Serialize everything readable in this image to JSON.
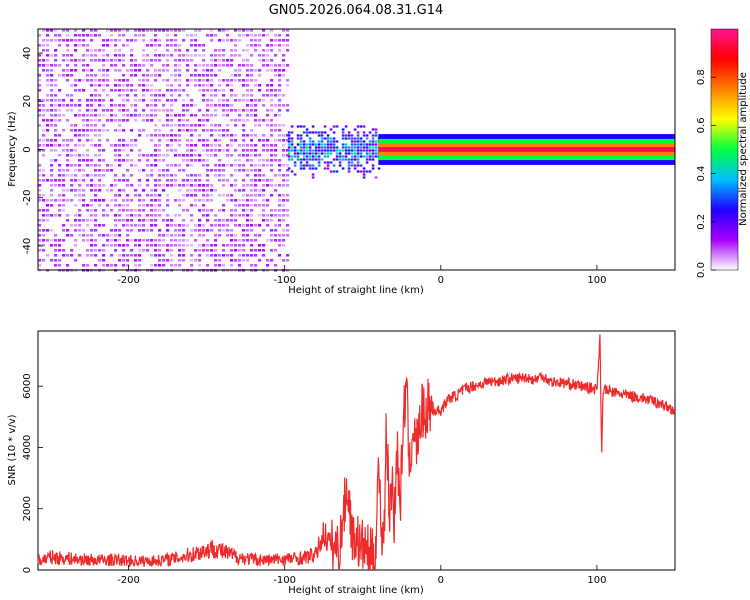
{
  "title": "GN05.2026.064.08.31.G14",
  "chart_data": [
    {
      "type": "heatmap",
      "xlabel": "Height of straight line (km)",
      "ylabel": "Frequency (Hz)",
      "xlim": [
        -258,
        150
      ],
      "ylim": [
        -50,
        50
      ],
      "xticks": [
        -200,
        -100,
        0,
        100
      ],
      "xticklabels": [
        "-200",
        "-100",
        "0",
        "100"
      ],
      "yticks": [
        -40,
        -20,
        0,
        20,
        40
      ],
      "yticklabels": [
        "-40",
        "-20",
        "0",
        "20",
        "40"
      ],
      "colorbar": {
        "label": "Normalized spectral amplitude",
        "range": [
          0,
          1
        ],
        "ticks": [
          0,
          0.2,
          0.4,
          0.6,
          0.8
        ],
        "ticklabels": [
          "0.0",
          "0.2",
          "0.4",
          "0.6",
          "0.8"
        ],
        "colormap": [
          "#ffffff",
          "#a500ff",
          "#1e00ff",
          "#00bfff",
          "#00ff40",
          "#ffff00",
          "#ff8000",
          "#ff0000",
          "#ff1493"
        ]
      },
      "regions": [
        {
          "x": [
            -258,
            -98
          ],
          "freq": [
            -50,
            50
          ],
          "amplitude": 0.1,
          "pattern": "noise"
        },
        {
          "x": [
            -98,
            -40
          ],
          "freq": [
            -12,
            10
          ],
          "amplitude": 0.35,
          "pattern": "scatter"
        },
        {
          "x": [
            -40,
            150
          ],
          "freq": [
            -2,
            2
          ],
          "amplitude": 0.95,
          "pattern": "line"
        }
      ]
    },
    {
      "type": "line",
      "xlabel": "Height of straight line (km)",
      "ylabel": "SNR (10 * v/v)",
      "xlim": [
        -258,
        150
      ],
      "ylim": [
        0,
        7800
      ],
      "xticks": [
        -200,
        -100,
        0,
        100
      ],
      "xticklabels": [
        "-200",
        "-100",
        "0",
        "100"
      ],
      "yticks": [
        0,
        2000,
        4000,
        6000
      ],
      "yticklabels": [
        "0",
        "2000",
        "4000",
        "6000"
      ],
      "color": "#ee2a2a",
      "series": [
        {
          "x": [
            -258,
            -250,
            -240,
            -230,
            -220,
            -210,
            -200,
            -190,
            -180,
            -170,
            -160,
            -150,
            -145,
            -140,
            -130,
            -120,
            -110,
            -100,
            -90,
            -80,
            -75,
            -70,
            -65,
            -60,
            -58,
            -56,
            -54,
            -52,
            -50,
            -45,
            -42,
            -40,
            -38,
            -36,
            -35,
            -33,
            -31,
            -30,
            -28,
            -26,
            -24,
            -22,
            -20,
            -18,
            -16,
            -14,
            -12,
            -10,
            -8,
            -5,
            0,
            5,
            10,
            15,
            20,
            25,
            30,
            35,
            40,
            45,
            50,
            55,
            60,
            65,
            70,
            80,
            90,
            100,
            102,
            103,
            104,
            110,
            120,
            130,
            140,
            150
          ],
          "y": [
            300,
            420,
            380,
            340,
            320,
            330,
            300,
            290,
            310,
            380,
            500,
            650,
            720,
            600,
            420,
            340,
            330,
            360,
            380,
            500,
            1200,
            800,
            700,
            2800,
            1800,
            900,
            1200,
            700,
            800,
            500,
            400,
            3500,
            1200,
            1500,
            5000,
            1800,
            3000,
            1500,
            4000,
            2000,
            5000,
            6000,
            3200,
            4800,
            4000,
            4500,
            5200,
            5000,
            5400,
            5200,
            5200,
            5600,
            5700,
            5900,
            6000,
            6050,
            6150,
            6150,
            6200,
            6250,
            6250,
            6300,
            6200,
            6350,
            6150,
            6100,
            6000,
            5900,
            7700,
            3700,
            5900,
            5800,
            5700,
            5600,
            5450,
            5200
          ]
        }
      ]
    }
  ]
}
